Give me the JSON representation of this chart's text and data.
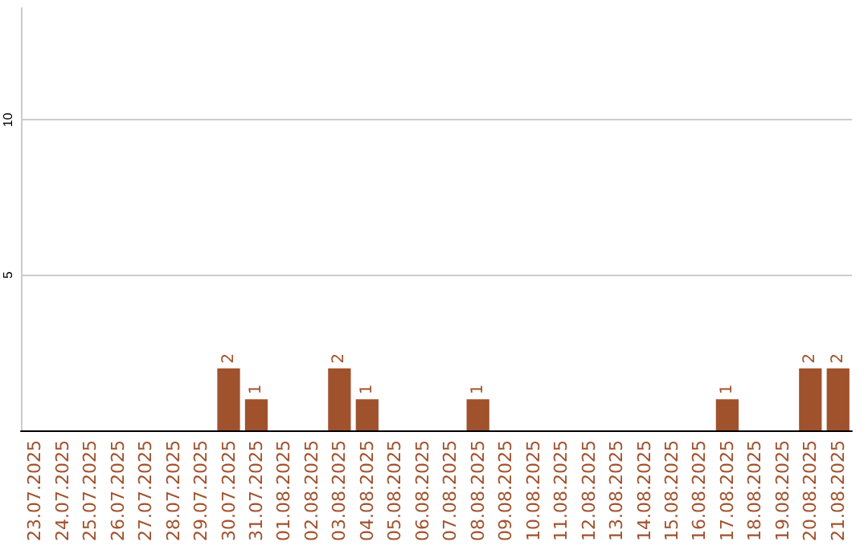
{
  "chart_data": {
    "type": "bar",
    "categories": [
      "23.07.2025",
      "24.07.2025",
      "25.07.2025",
      "26.07.2025",
      "27.07.2025",
      "28.07.2025",
      "29.07.2025",
      "30.07.2025",
      "31.07.2025",
      "01.08.2025",
      "02.08.2025",
      "03.08.2025",
      "04.08.2025",
      "05.08.2025",
      "06.08.2025",
      "07.08.2025",
      "08.08.2025",
      "09.08.2025",
      "10.08.2025",
      "11.08.2025",
      "12.08.2025",
      "13.08.2025",
      "14.08.2025",
      "15.08.2025",
      "16.08.2025",
      "17.08.2025",
      "18.08.2025",
      "19.08.2025",
      "20.08.2025",
      "21.08.2025"
    ],
    "values": [
      0,
      0,
      0,
      0,
      0,
      0,
      0,
      2,
      1,
      0,
      0,
      2,
      1,
      0,
      0,
      0,
      1,
      0,
      0,
      0,
      0,
      0,
      0,
      0,
      0,
      1,
      0,
      0,
      2,
      2
    ],
    "value_labels": [
      null,
      null,
      null,
      null,
      null,
      null,
      null,
      "2",
      "1",
      null,
      null,
      "2",
      "1",
      null,
      null,
      null,
      "1",
      null,
      null,
      null,
      null,
      null,
      null,
      null,
      null,
      "1",
      null,
      null,
      "2",
      "2"
    ],
    "color": "#a0522d",
    "ylim": [
      0,
      13.6
    ],
    "yticks": [
      5,
      10
    ],
    "grid": "y"
  }
}
